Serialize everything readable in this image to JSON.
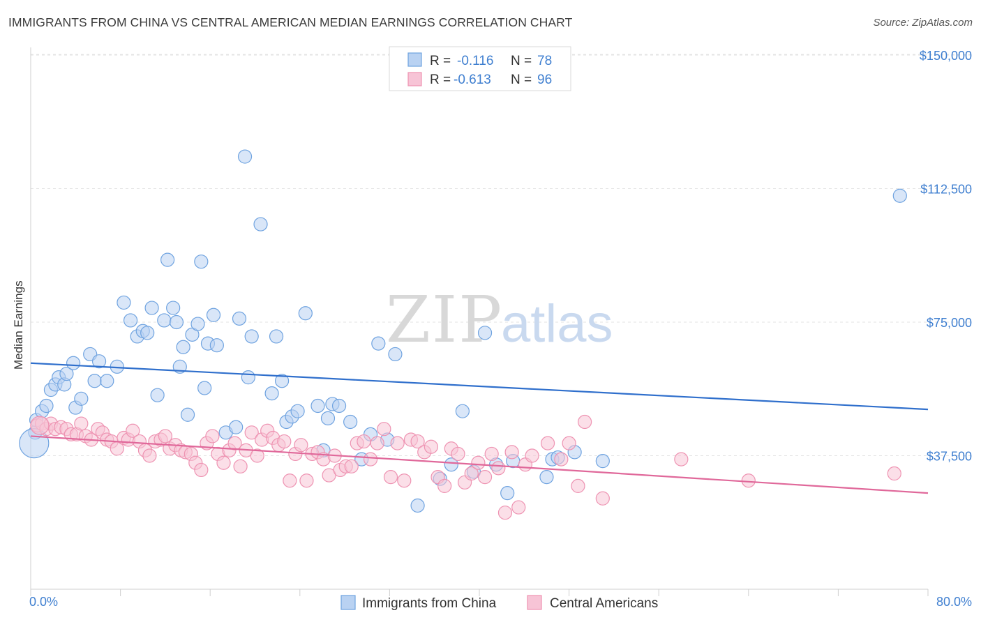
{
  "title": "IMMIGRANTS FROM CHINA VS CENTRAL AMERICAN MEDIAN EARNINGS CORRELATION CHART",
  "source": "Source: ZipAtlas.com",
  "watermark": {
    "zip": "ZIP",
    "atlas": "atlas"
  },
  "legend": {
    "rows": [
      {
        "r_label": "R =",
        "r_value": "-0.116",
        "n_label": "N =",
        "n_value": "78"
      },
      {
        "r_label": "R =",
        "r_value": "-0.613",
        "n_label": "N =",
        "n_value": "96"
      }
    ]
  },
  "chart_data": {
    "type": "scatter",
    "title": "IMMIGRANTS FROM CHINA VS CENTRAL AMERICAN MEDIAN EARNINGS CORRELATION CHART",
    "xlabel": "",
    "ylabel": "Median Earnings",
    "xlim": [
      0,
      80
    ],
    "ylim": [
      0,
      160000
    ],
    "x_tick_labels": [
      "0.0%",
      "80.0%"
    ],
    "y_ticks": [
      {
        "value": 150000,
        "label": "$150,000"
      },
      {
        "value": 112500,
        "label": "$112,500"
      },
      {
        "value": 75000,
        "label": "$75,000"
      },
      {
        "value": 37500,
        "label": "$37,500"
      }
    ],
    "grid": "horizontal dashed",
    "legend_position": "top-center",
    "series": [
      {
        "name": "Immigrants from China",
        "color": "#6fa3e0",
        "fill": "#b9d2f2",
        "trend": {
          "x": [
            0,
            80
          ],
          "y": [
            63500,
            50500
          ],
          "color": "#2f6fcc"
        },
        "points": [
          [
            0.4,
            44000
          ],
          [
            0.5,
            47500
          ],
          [
            1.0,
            50000
          ],
          [
            1.4,
            51500
          ],
          [
            1.8,
            56000
          ],
          [
            2.2,
            57500
          ],
          [
            2.5,
            59500
          ],
          [
            3.0,
            57500
          ],
          [
            3.2,
            60500
          ],
          [
            3.8,
            63500
          ],
          [
            4.0,
            51000
          ],
          [
            4.5,
            53500
          ],
          [
            5.3,
            66000
          ],
          [
            5.7,
            58500
          ],
          [
            6.1,
            64000
          ],
          [
            6.8,
            58500
          ],
          [
            7.7,
            62500
          ],
          [
            8.3,
            80500
          ],
          [
            8.9,
            75500
          ],
          [
            9.5,
            71000
          ],
          [
            10.0,
            72500
          ],
          [
            10.4,
            72000
          ],
          [
            10.8,
            79000
          ],
          [
            11.3,
            54500
          ],
          [
            11.9,
            75500
          ],
          [
            12.2,
            92500
          ],
          [
            12.7,
            79000
          ],
          [
            13.0,
            75000
          ],
          [
            13.3,
            62500
          ],
          [
            13.6,
            68000
          ],
          [
            14.0,
            49000
          ],
          [
            14.4,
            71500
          ],
          [
            14.9,
            74500
          ],
          [
            15.2,
            92000
          ],
          [
            15.5,
            56500
          ],
          [
            15.8,
            69000
          ],
          [
            16.3,
            77000
          ],
          [
            16.6,
            68500
          ],
          [
            17.4,
            44000
          ],
          [
            18.3,
            45500
          ],
          [
            18.6,
            76000
          ],
          [
            19.1,
            121500
          ],
          [
            19.4,
            59500
          ],
          [
            19.7,
            71000
          ],
          [
            20.5,
            102500
          ],
          [
            21.5,
            55000
          ],
          [
            21.9,
            71000
          ],
          [
            22.4,
            58500
          ],
          [
            22.8,
            47000
          ],
          [
            23.3,
            48500
          ],
          [
            23.8,
            50000
          ],
          [
            24.5,
            77500
          ],
          [
            25.6,
            51500
          ],
          [
            26.1,
            39000
          ],
          [
            26.5,
            48000
          ],
          [
            26.9,
            52000
          ],
          [
            27.5,
            51500
          ],
          [
            28.5,
            47000
          ],
          [
            29.5,
            36500
          ],
          [
            30.3,
            43500
          ],
          [
            31.0,
            69000
          ],
          [
            31.8,
            42000
          ],
          [
            32.5,
            66000
          ],
          [
            34.5,
            23500
          ],
          [
            36.5,
            31000
          ],
          [
            37.5,
            35000
          ],
          [
            38.5,
            50000
          ],
          [
            39.5,
            33000
          ],
          [
            40.5,
            72000
          ],
          [
            41.5,
            35000
          ],
          [
            42.5,
            27000
          ],
          [
            43.0,
            36000
          ],
          [
            46.0,
            31500
          ],
          [
            46.5,
            36500
          ],
          [
            47.0,
            37000
          ],
          [
            48.5,
            38500
          ],
          [
            51.0,
            36000
          ],
          [
            77.5,
            110500
          ]
        ]
      },
      {
        "name": "Central Americans",
        "color": "#ee93b2",
        "fill": "#f7c4d6",
        "trend": {
          "x": [
            0,
            80
          ],
          "y": [
            43000,
            27000
          ],
          "color": "#e0689a"
        },
        "points": [
          [
            0.6,
            46000
          ],
          [
            1.0,
            46500
          ],
          [
            1.4,
            45000
          ],
          [
            1.8,
            46500
          ],
          [
            2.2,
            45000
          ],
          [
            2.7,
            45500
          ],
          [
            3.2,
            45000
          ],
          [
            3.6,
            43500
          ],
          [
            4.1,
            43500
          ],
          [
            4.5,
            46500
          ],
          [
            4.9,
            43000
          ],
          [
            5.4,
            42000
          ],
          [
            6.0,
            45000
          ],
          [
            6.4,
            44000
          ],
          [
            6.8,
            42000
          ],
          [
            7.2,
            41500
          ],
          [
            7.7,
            39500
          ],
          [
            8.3,
            42500
          ],
          [
            8.7,
            42000
          ],
          [
            9.1,
            44500
          ],
          [
            9.7,
            41500
          ],
          [
            10.2,
            39000
          ],
          [
            10.6,
            37500
          ],
          [
            11.1,
            41500
          ],
          [
            11.6,
            42000
          ],
          [
            12.0,
            43000
          ],
          [
            12.4,
            39500
          ],
          [
            12.9,
            40500
          ],
          [
            13.4,
            39000
          ],
          [
            13.8,
            38500
          ],
          [
            14.3,
            38000
          ],
          [
            14.7,
            35500
          ],
          [
            15.2,
            33500
          ],
          [
            15.7,
            41000
          ],
          [
            16.2,
            43000
          ],
          [
            16.7,
            38000
          ],
          [
            17.2,
            35500
          ],
          [
            17.7,
            39000
          ],
          [
            18.2,
            41000
          ],
          [
            18.7,
            34500
          ],
          [
            19.2,
            39000
          ],
          [
            19.7,
            44000
          ],
          [
            20.2,
            37500
          ],
          [
            20.6,
            42000
          ],
          [
            21.1,
            44500
          ],
          [
            21.6,
            42500
          ],
          [
            22.1,
            40500
          ],
          [
            22.6,
            41500
          ],
          [
            23.1,
            30500
          ],
          [
            23.6,
            38000
          ],
          [
            24.1,
            40500
          ],
          [
            24.6,
            30500
          ],
          [
            25.1,
            38000
          ],
          [
            25.6,
            38500
          ],
          [
            26.1,
            36500
          ],
          [
            26.6,
            32000
          ],
          [
            27.1,
            37500
          ],
          [
            27.6,
            33500
          ],
          [
            28.1,
            34500
          ],
          [
            28.6,
            34500
          ],
          [
            29.1,
            41000
          ],
          [
            29.7,
            41500
          ],
          [
            30.3,
            36500
          ],
          [
            30.9,
            41000
          ],
          [
            31.5,
            45000
          ],
          [
            32.1,
            31500
          ],
          [
            32.7,
            41000
          ],
          [
            33.3,
            30500
          ],
          [
            33.9,
            42000
          ],
          [
            34.5,
            41500
          ],
          [
            35.1,
            38500
          ],
          [
            35.7,
            40000
          ],
          [
            36.3,
            31500
          ],
          [
            36.9,
            29000
          ],
          [
            37.5,
            39500
          ],
          [
            38.1,
            38000
          ],
          [
            38.7,
            30000
          ],
          [
            39.3,
            32500
          ],
          [
            39.9,
            35500
          ],
          [
            40.5,
            31500
          ],
          [
            41.1,
            38000
          ],
          [
            41.7,
            34000
          ],
          [
            42.3,
            21500
          ],
          [
            42.9,
            38500
          ],
          [
            43.5,
            23000
          ],
          [
            44.1,
            35000
          ],
          [
            44.7,
            37500
          ],
          [
            46.1,
            41000
          ],
          [
            47.3,
            36500
          ],
          [
            48.0,
            41000
          ],
          [
            48.8,
            29000
          ],
          [
            49.4,
            47000
          ],
          [
            51.0,
            25500
          ],
          [
            58.0,
            36500
          ],
          [
            64.0,
            30500
          ],
          [
            77.0,
            32500
          ]
        ]
      }
    ]
  },
  "bottom_legend": [
    "Immigrants from China",
    "Central Americans"
  ]
}
